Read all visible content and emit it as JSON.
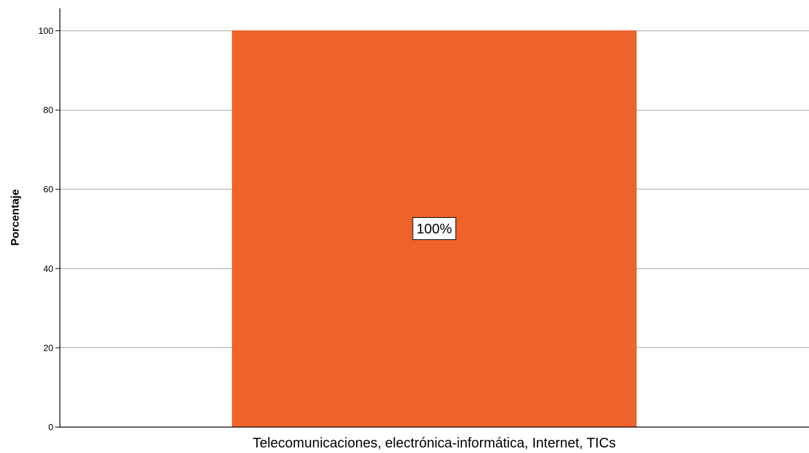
{
  "chart_data": {
    "type": "bar",
    "categories": [
      "Telecomunicaciones, electrónica-informática, Internet, TICs"
    ],
    "values": [
      100
    ],
    "data_labels": [
      "100%"
    ],
    "xlabel": "",
    "ylabel": "Porcentaje",
    "ylim": [
      0,
      105
    ],
    "yticks": [
      0,
      20,
      40,
      60,
      80,
      100
    ],
    "grid": true,
    "legend": "none",
    "colors": {
      "bar": "#ee6329",
      "grid": "#b3b3b3",
      "axis": "#000000",
      "label_box_fill": "#ffffff",
      "label_box_border": "#000000"
    }
  }
}
